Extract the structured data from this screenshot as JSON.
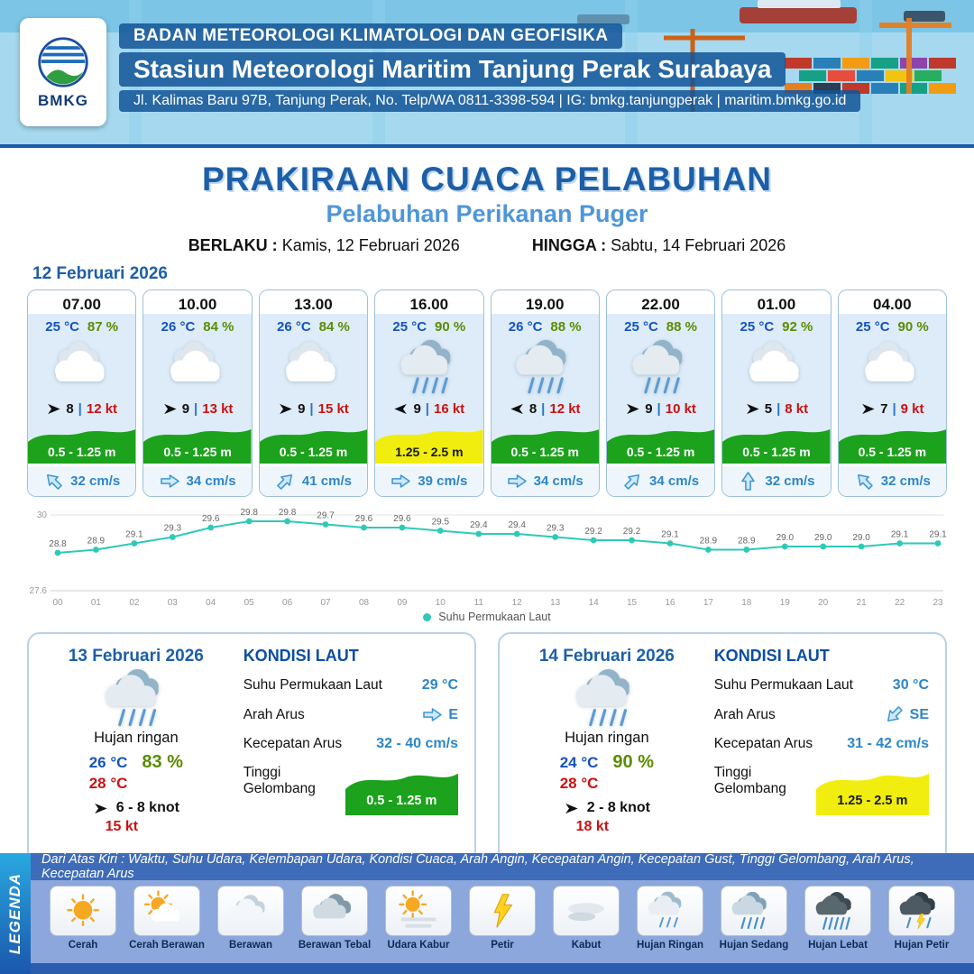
{
  "header": {
    "logo": "BMKG",
    "org": "BADAN METEOROLOGI KLIMATOLOGI DAN GEOFISIKA",
    "station": "Stasiun Meteorologi Maritim Tanjung Perak Surabaya",
    "address": "Jl. Kalimas Baru 97B, Tanjung Perak, No. Telp/WA 0811-3398-594 | IG: bmkg.tanjungperak | maritim.bmkg.go.id"
  },
  "title": {
    "main": "PRAKIRAAN CUACA PELABUHAN",
    "subtitle": "Pelabuhan Perikanan Puger",
    "valid_label": "BERLAKU :",
    "valid_value": "Kamis, 12 Februari 2026",
    "until_label": "HINGGA :",
    "until_value": "Sabtu, 14 Februari 2026"
  },
  "forecast_date": "12 Februari 2026",
  "labels": {
    "sep": "|",
    "kondisi_laut": "KONDISI LAUT",
    "sst": "Suhu Permukaan Laut",
    "arah_arus": "Arah Arus",
    "kecepatan_arus": "Kecepatan Arus",
    "tinggi_gelombang": "Tinggi Gelombang"
  },
  "hourly": [
    {
      "time": "07.00",
      "temp": "25 °C",
      "rh": "87 %",
      "icon": "cloudy",
      "wind_dir": "E",
      "wind": "8",
      "gust": "12 kt",
      "wave": "0.5 - 1.25 m",
      "wave_color": "green",
      "cur_dir": "NW",
      "current": "32 cm/s"
    },
    {
      "time": "10.00",
      "temp": "26 °C",
      "rh": "84 %",
      "icon": "cloudy",
      "wind_dir": "E",
      "wind": "9",
      "gust": "13 kt",
      "wave": "0.5 - 1.25 m",
      "wave_color": "green",
      "cur_dir": "E",
      "current": "34 cm/s"
    },
    {
      "time": "13.00",
      "temp": "26 °C",
      "rh": "84 %",
      "icon": "cloudy",
      "wind_dir": "E",
      "wind": "9",
      "gust": "15 kt",
      "wave": "0.5 - 1.25 m",
      "wave_color": "green",
      "cur_dir": "NE",
      "current": "41 cm/s"
    },
    {
      "time": "16.00",
      "temp": "25 °C",
      "rh": "90 %",
      "icon": "rain",
      "wind_dir": "W",
      "wind": "9",
      "gust": "16 kt",
      "wave": "1.25 - 2.5 m",
      "wave_color": "yellow",
      "cur_dir": "E",
      "current": "39 cm/s"
    },
    {
      "time": "19.00",
      "temp": "26 °C",
      "rh": "88 %",
      "icon": "rain",
      "wind_dir": "W",
      "wind": "8",
      "gust": "12 kt",
      "wave": "0.5 - 1.25 m",
      "wave_color": "green",
      "cur_dir": "E",
      "current": "34 cm/s"
    },
    {
      "time": "22.00",
      "temp": "25 °C",
      "rh": "88 %",
      "icon": "rain",
      "wind_dir": "E",
      "wind": "9",
      "gust": "10 kt",
      "wave": "0.5 - 1.25 m",
      "wave_color": "green",
      "cur_dir": "NE",
      "current": "34 cm/s"
    },
    {
      "time": "01.00",
      "temp": "25 °C",
      "rh": "92 %",
      "icon": "cloudy",
      "wind_dir": "E",
      "wind": "5",
      "gust": "8 kt",
      "wave": "0.5 - 1.25 m",
      "wave_color": "green",
      "cur_dir": "N",
      "current": "32 cm/s"
    },
    {
      "time": "04.00",
      "temp": "25 °C",
      "rh": "90 %",
      "icon": "cloudy",
      "wind_dir": "E",
      "wind": "7",
      "gust": "9 kt",
      "wave": "0.5 - 1.25 m",
      "wave_color": "green",
      "cur_dir": "NW",
      "current": "32 cm/s"
    }
  ],
  "chart_data": {
    "type": "line",
    "title": "Suhu Permukaan Laut",
    "legend": "Suhu Permukaan Laut",
    "x": [
      "00",
      "01",
      "02",
      "03",
      "04",
      "05",
      "06",
      "07",
      "08",
      "09",
      "10",
      "11",
      "12",
      "13",
      "14",
      "15",
      "16",
      "17",
      "18",
      "19",
      "20",
      "21",
      "22",
      "23"
    ],
    "values": [
      28.8,
      28.9,
      29.1,
      29.3,
      29.6,
      29.8,
      29.8,
      29.7,
      29.6,
      29.6,
      29.5,
      29.4,
      29.4,
      29.3,
      29.2,
      29.2,
      29.1,
      28.9,
      28.9,
      29.0,
      29.0,
      29.0,
      29.1,
      29.1
    ],
    "ylim": [
      27.6,
      30
    ],
    "yticks": [
      "30",
      "27.6"
    ],
    "line_color": "#2ec9b8",
    "grid": true,
    "legend_position": "bottom"
  },
  "daily": [
    {
      "date": "13 Februari 2026",
      "icon": "rain",
      "cond": "Hujan ringan",
      "temp_min": "26 °C",
      "rh": "83 %",
      "temp_max": "28 °C",
      "wind_dir": "E",
      "wind": "6 - 8 knot",
      "gust": "15 kt",
      "sea": {
        "sst": "29 °C",
        "arah": "E",
        "arah_dir": "E",
        "kecepatan": "32 - 40 cm/s",
        "gelombang": "0.5 - 1.25 m",
        "wave_color": "green"
      }
    },
    {
      "date": "14 Februari 2026",
      "icon": "rain",
      "cond": "Hujan ringan",
      "temp_min": "24 °C",
      "rh": "90 %",
      "temp_max": "28 °C",
      "wind_dir": "E",
      "wind": "2 - 8 knot",
      "gust": "18 kt",
      "sea": {
        "sst": "30 °C",
        "arah": "SE",
        "arah_dir": "SE",
        "kecepatan": "31 - 42 cm/s",
        "gelombang": "1.25 - 2.5 m",
        "wave_color": "yellow"
      }
    }
  ],
  "legend": {
    "title": "LEGENDA",
    "description": "Dari Atas Kiri : Waktu, Suhu Udara, Kelembapan Udara, Kondisi Cuaca, Arah Angin, Kecepatan Angin, Kecepatan Gust, Tinggi Gelombang, Arah Arus, Kecepatan Arus",
    "items": [
      {
        "label": "Cerah",
        "icon": "sun"
      },
      {
        "label": "Cerah Berawan",
        "icon": "sun-cloud"
      },
      {
        "label": "Berawan",
        "icon": "cloud"
      },
      {
        "label": "Berawan Tebal",
        "icon": "cloud-thick"
      },
      {
        "label": "Udara Kabur",
        "icon": "haze"
      },
      {
        "label": "Petir",
        "icon": "lightning"
      },
      {
        "label": "Kabut",
        "icon": "fog"
      },
      {
        "label": "Hujan Ringan",
        "icon": "rain-light"
      },
      {
        "label": "Hujan Sedang",
        "icon": "rain-medium"
      },
      {
        "label": "Hujan Lebat",
        "icon": "rain-heavy"
      },
      {
        "label": "Hujan Petir",
        "icon": "storm"
      }
    ]
  },
  "colors": {
    "accent_blue": "#1d5fa7",
    "subtitle_blue": "#4f96d8",
    "temp_blue": "#1553c0",
    "humidity_green": "#5b8c00",
    "gust_red": "#cc1111",
    "current_blue": "#2d86c8",
    "wave_green": "#1ca21c",
    "wave_yellow": "#f1ed0e",
    "chart_line": "#2ec9b8"
  }
}
